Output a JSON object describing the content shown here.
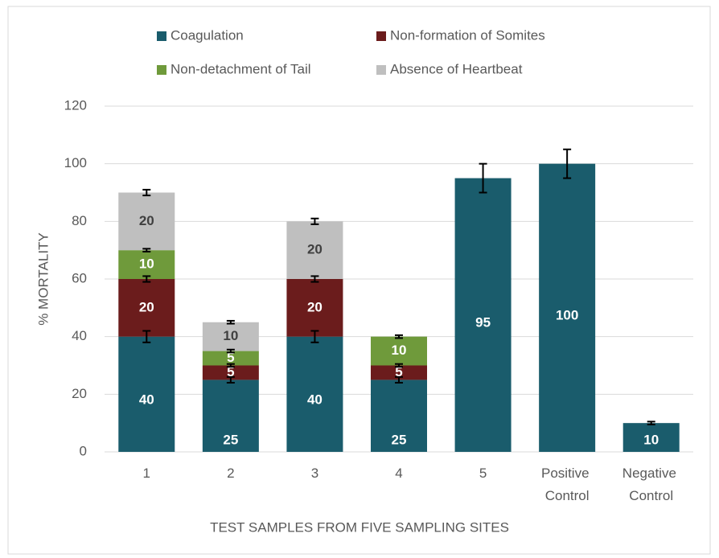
{
  "chart_data": {
    "type": "stacked_bar",
    "categories": [
      "1",
      "2",
      "3",
      "4",
      "5",
      "Positive Control",
      "Negative Control"
    ],
    "series": [
      {
        "name": "Coagulation",
        "color": "#1a5c6c",
        "values": [
          40,
          25,
          40,
          25,
          95,
          100,
          10
        ],
        "errors": [
          2,
          1,
          2,
          1,
          5,
          5,
          0.5
        ]
      },
      {
        "name": "Non-formation of Somites",
        "color": "#6b1c1c",
        "values": [
          20,
          5,
          20,
          5,
          null,
          null,
          null
        ],
        "errors": [
          1,
          0.5,
          1,
          0.5,
          null,
          null,
          null
        ]
      },
      {
        "name": "Non-detachment of Tail",
        "color": "#6f9a3b",
        "values": [
          10,
          5,
          null,
          10,
          null,
          null,
          null
        ],
        "errors": [
          0.5,
          0.5,
          null,
          0.5,
          null,
          null,
          null
        ]
      },
      {
        "name": "Absence of Heartbeat",
        "color": "#bfbfbf",
        "values": [
          20,
          10,
          20,
          null,
          null,
          null,
          null
        ],
        "errors": [
          1,
          0.5,
          1,
          null,
          null,
          null,
          null
        ]
      }
    ],
    "ylabel": "% MORTALITY",
    "xlabel": "TEST SAMPLES FROM FIVE SAMPLING SITES",
    "ylim": [
      0,
      120
    ],
    "yticks": [
      0,
      20,
      40,
      60,
      80,
      100,
      120
    ],
    "grid": true,
    "legend": "top"
  }
}
